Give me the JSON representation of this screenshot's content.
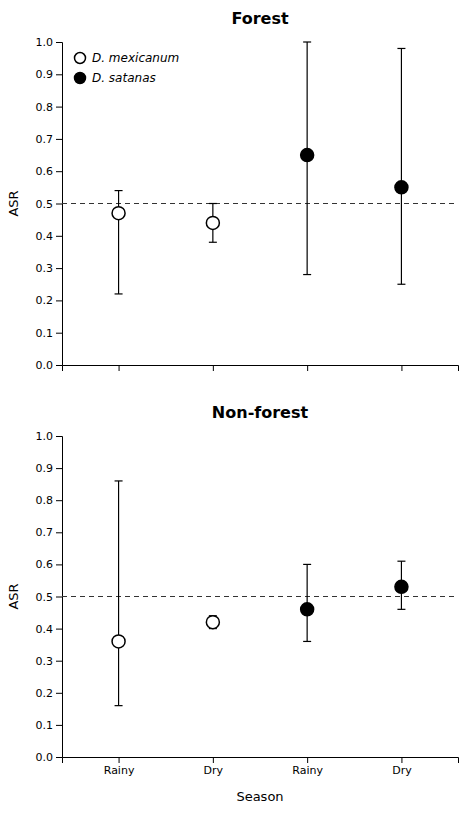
{
  "chart_data": [
    {
      "type": "scatter",
      "title": "Forest",
      "ylabel": "ASR",
      "xlim": [
        0.4,
        4.6
      ],
      "xticks": [
        1,
        2,
        3,
        4
      ],
      "ylim": [
        0.0,
        1.0
      ],
      "yticks": [
        {
          "value": 0.0,
          "label": "0.0"
        },
        0.1,
        0.2,
        0.3,
        0.4,
        0.5,
        0.6,
        0.7,
        0.8,
        0.9,
        {
          "value": 1.0,
          "label": "1.0"
        }
      ],
      "tick_labels": "y",
      "legend": "upper left",
      "reference_line": 0.5,
      "series": [
        {
          "name": "D. mexicanum",
          "color": "#ffffff",
          "marker": "circle",
          "x": [
            1,
            2
          ],
          "values": [
            0.47,
            0.44
          ],
          "lower": [
            0.22,
            0.38
          ],
          "upper": [
            0.54,
            0.5
          ]
        },
        {
          "name": "D. satanas",
          "color": "#000000",
          "marker": "circle",
          "x": [
            3,
            4
          ],
          "values": [
            0.65,
            0.55
          ],
          "lower": [
            0.28,
            0.25
          ],
          "upper": [
            1.0,
            0.98
          ]
        }
      ]
    },
    {
      "type": "scatter",
      "title": "Non-forest",
      "ylabel": "ASR",
      "xlabel": "Season",
      "xlim": [
        0.4,
        4.6
      ],
      "xticks": [
        {
          "value": 1,
          "label": "Rainy"
        },
        {
          "value": 2,
          "label": "Dry"
        },
        {
          "value": 3,
          "label": "Rainy"
        },
        {
          "value": 4,
          "label": "Dry"
        }
      ],
      "ylim": [
        0.0,
        1.0
      ],
      "yticks": [
        {
          "value": 0.0,
          "label": "0.0"
        },
        0.1,
        0.2,
        0.3,
        0.4,
        0.5,
        0.6,
        0.7,
        0.8,
        0.9,
        {
          "value": 1.0,
          "label": "1.0"
        }
      ],
      "reference_line": 0.5,
      "series": [
        {
          "color": "#ffffff",
          "marker": "circle",
          "x": [
            1,
            2
          ],
          "values": [
            0.36,
            0.42
          ],
          "lower": [
            0.16,
            0.4
          ],
          "upper": [
            0.86,
            0.44
          ]
        },
        {
          "color": "#000000",
          "marker": "circle",
          "x": [
            3,
            4
          ],
          "values": [
            0.46,
            0.53
          ],
          "lower": [
            0.36,
            0.46
          ],
          "upper": [
            0.6,
            0.61
          ]
        }
      ]
    }
  ]
}
